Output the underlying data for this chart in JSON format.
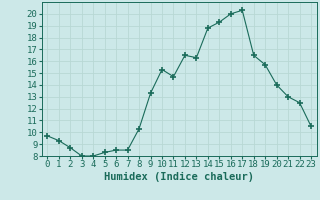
{
  "x": [
    0,
    1,
    2,
    3,
    4,
    5,
    6,
    7,
    8,
    9,
    10,
    11,
    12,
    13,
    14,
    15,
    16,
    17,
    18,
    19,
    20,
    21,
    22,
    23
  ],
  "y": [
    9.7,
    9.3,
    8.7,
    8.0,
    8.0,
    8.3,
    8.5,
    8.5,
    10.3,
    13.3,
    15.3,
    14.7,
    16.5,
    16.3,
    18.8,
    19.3,
    20.0,
    20.3,
    16.5,
    15.7,
    14.0,
    13.0,
    12.5,
    10.5
  ],
  "line_color": "#1a6b5a",
  "marker": "+",
  "marker_size": 4,
  "bg_color": "#cce8e8",
  "grid_color": "#b8d8d4",
  "xlabel": "Humidex (Indice chaleur)",
  "xlim": [
    -0.5,
    23.5
  ],
  "ylim": [
    8,
    21
  ],
  "yticks": [
    8,
    9,
    10,
    11,
    12,
    13,
    14,
    15,
    16,
    17,
    18,
    19,
    20
  ],
  "xticks": [
    0,
    1,
    2,
    3,
    4,
    5,
    6,
    7,
    8,
    9,
    10,
    11,
    12,
    13,
    14,
    15,
    16,
    17,
    18,
    19,
    20,
    21,
    22,
    23
  ],
  "tick_label_fontsize": 6.5,
  "xlabel_fontsize": 7.5
}
